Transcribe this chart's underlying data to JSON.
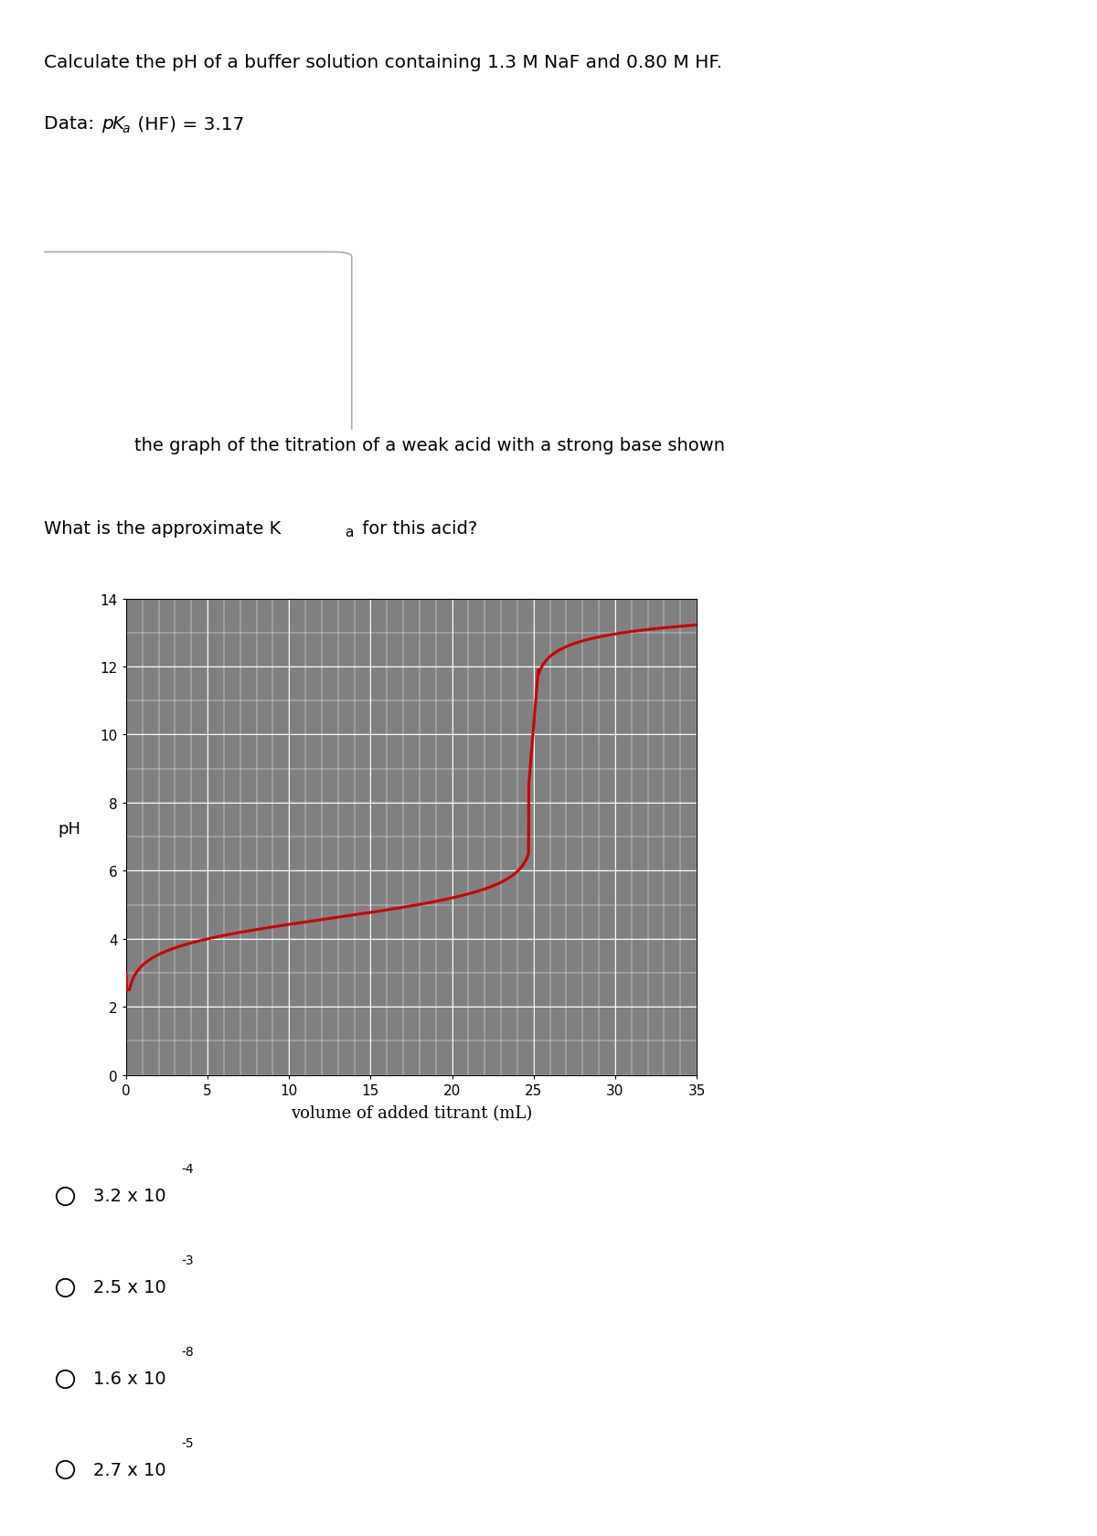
{
  "title_text": "Calculate the pH of a buffer solution containing 1.3 M NaF and 0.80 M HF.",
  "second_question_line1": "    the graph of the titration of a weak acid with a strong base shown",
  "second_question_line2": "What is the approximate Kₐ for this acid?",
  "xlabel": "volume of added titrant (mL)",
  "ylabel": "pH",
  "xlim": [
    0,
    35
  ],
  "ylim": [
    0,
    14
  ],
  "xticks": [
    0,
    5,
    10,
    15,
    20,
    25,
    30,
    35
  ],
  "yticks": [
    0,
    2,
    4,
    6,
    8,
    10,
    12,
    14
  ],
  "plot_bg_color": "#808080",
  "curve_color": "#cc0000",
  "choice_bases": [
    "3.2 x 10",
    "2.5 x 10",
    "1.6 x 10",
    "2.7 x 10"
  ],
  "choice_sups": [
    "-4",
    "-3",
    "-8",
    "-5"
  ],
  "fig_width": 12.0,
  "fig_height": 16.81
}
